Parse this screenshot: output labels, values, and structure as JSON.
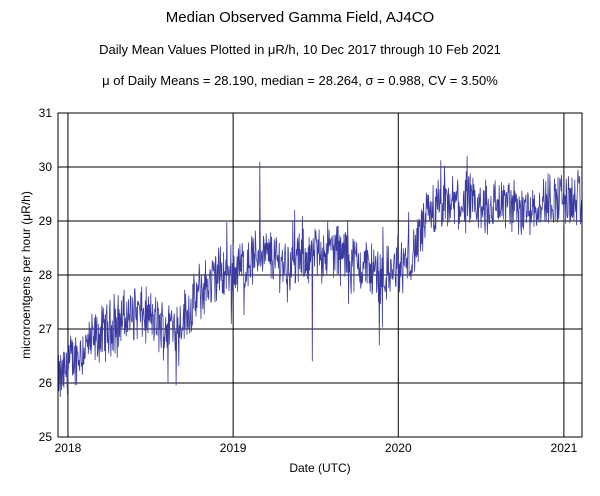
{
  "title": "Median Observed Gamma Field, AJ4CO",
  "subtitle": "Daily Mean Values Plotted in μR/h, 10 Dec 2017 through 10 Feb 2021",
  "stats_line": "μ of Daily Means = 28.190,   median = 28.264,   σ = 0.988,   CV = 3.50%",
  "chart_data": {
    "type": "line",
    "title": "Median Observed Gamma Field, AJ4CO",
    "xlabel": "Date (UTC)",
    "ylabel": "microroentgens per hour (μR/h)",
    "xlim": [
      "2017-12-10",
      "2021-02-10"
    ],
    "ylim": [
      25,
      31
    ],
    "x_ticks": [
      "2018",
      "2019",
      "2020",
      "2021"
    ],
    "y_ticks": [
      25,
      26,
      27,
      28,
      29,
      30,
      31
    ],
    "grid": true,
    "line_color": "#3a3aa0",
    "series": [
      {
        "x": [
          "2017-12-10",
          "2018-01-01",
          "2018-02-01",
          "2018-03-01",
          "2018-04-01",
          "2018-05-01",
          "2018-06-01",
          "2018-07-01",
          "2018-08-01",
          "2018-09-01",
          "2018-10-01",
          "2018-11-01",
          "2018-12-01",
          "2019-01-01",
          "2019-02-01",
          "2019-03-01",
          "2019-04-01",
          "2019-05-01",
          "2019-06-01",
          "2019-07-01",
          "2019-08-01",
          "2019-09-01",
          "2019-10-01",
          "2019-11-01",
          "2019-12-01",
          "2020-01-01",
          "2020-02-01",
          "2020-03-01",
          "2020-04-01",
          "2020-05-01",
          "2020-06-01",
          "2020-07-01",
          "2020-08-01",
          "2020-09-01",
          "2020-10-01",
          "2020-11-01",
          "2020-12-01",
          "2021-01-01",
          "2021-02-10"
        ],
        "values": [
          26.0,
          26.3,
          26.6,
          26.8,
          27.0,
          27.2,
          27.3,
          27.2,
          27.0,
          27.1,
          27.4,
          27.8,
          28.0,
          28.1,
          28.2,
          28.4,
          28.3,
          28.2,
          28.3,
          28.4,
          28.5,
          28.4,
          28.2,
          28.1,
          28.0,
          28.1,
          28.3,
          29.0,
          29.2,
          29.3,
          29.3,
          29.2,
          29.3,
          29.3,
          29.2,
          29.3,
          29.4,
          29.4,
          29.3
        ],
        "point_count": 1159
      }
    ],
    "annotations": [
      {
        "x": "2019-03-01",
        "y": 30.1,
        "note": "spike"
      },
      {
        "x": "2019-06-25",
        "y": 26.4,
        "note": "dip"
      },
      {
        "x": "2019-11-20",
        "y": 26.7,
        "note": "dip"
      },
      {
        "x": "2018-08-10",
        "y": 26.0,
        "note": "dip"
      }
    ]
  }
}
